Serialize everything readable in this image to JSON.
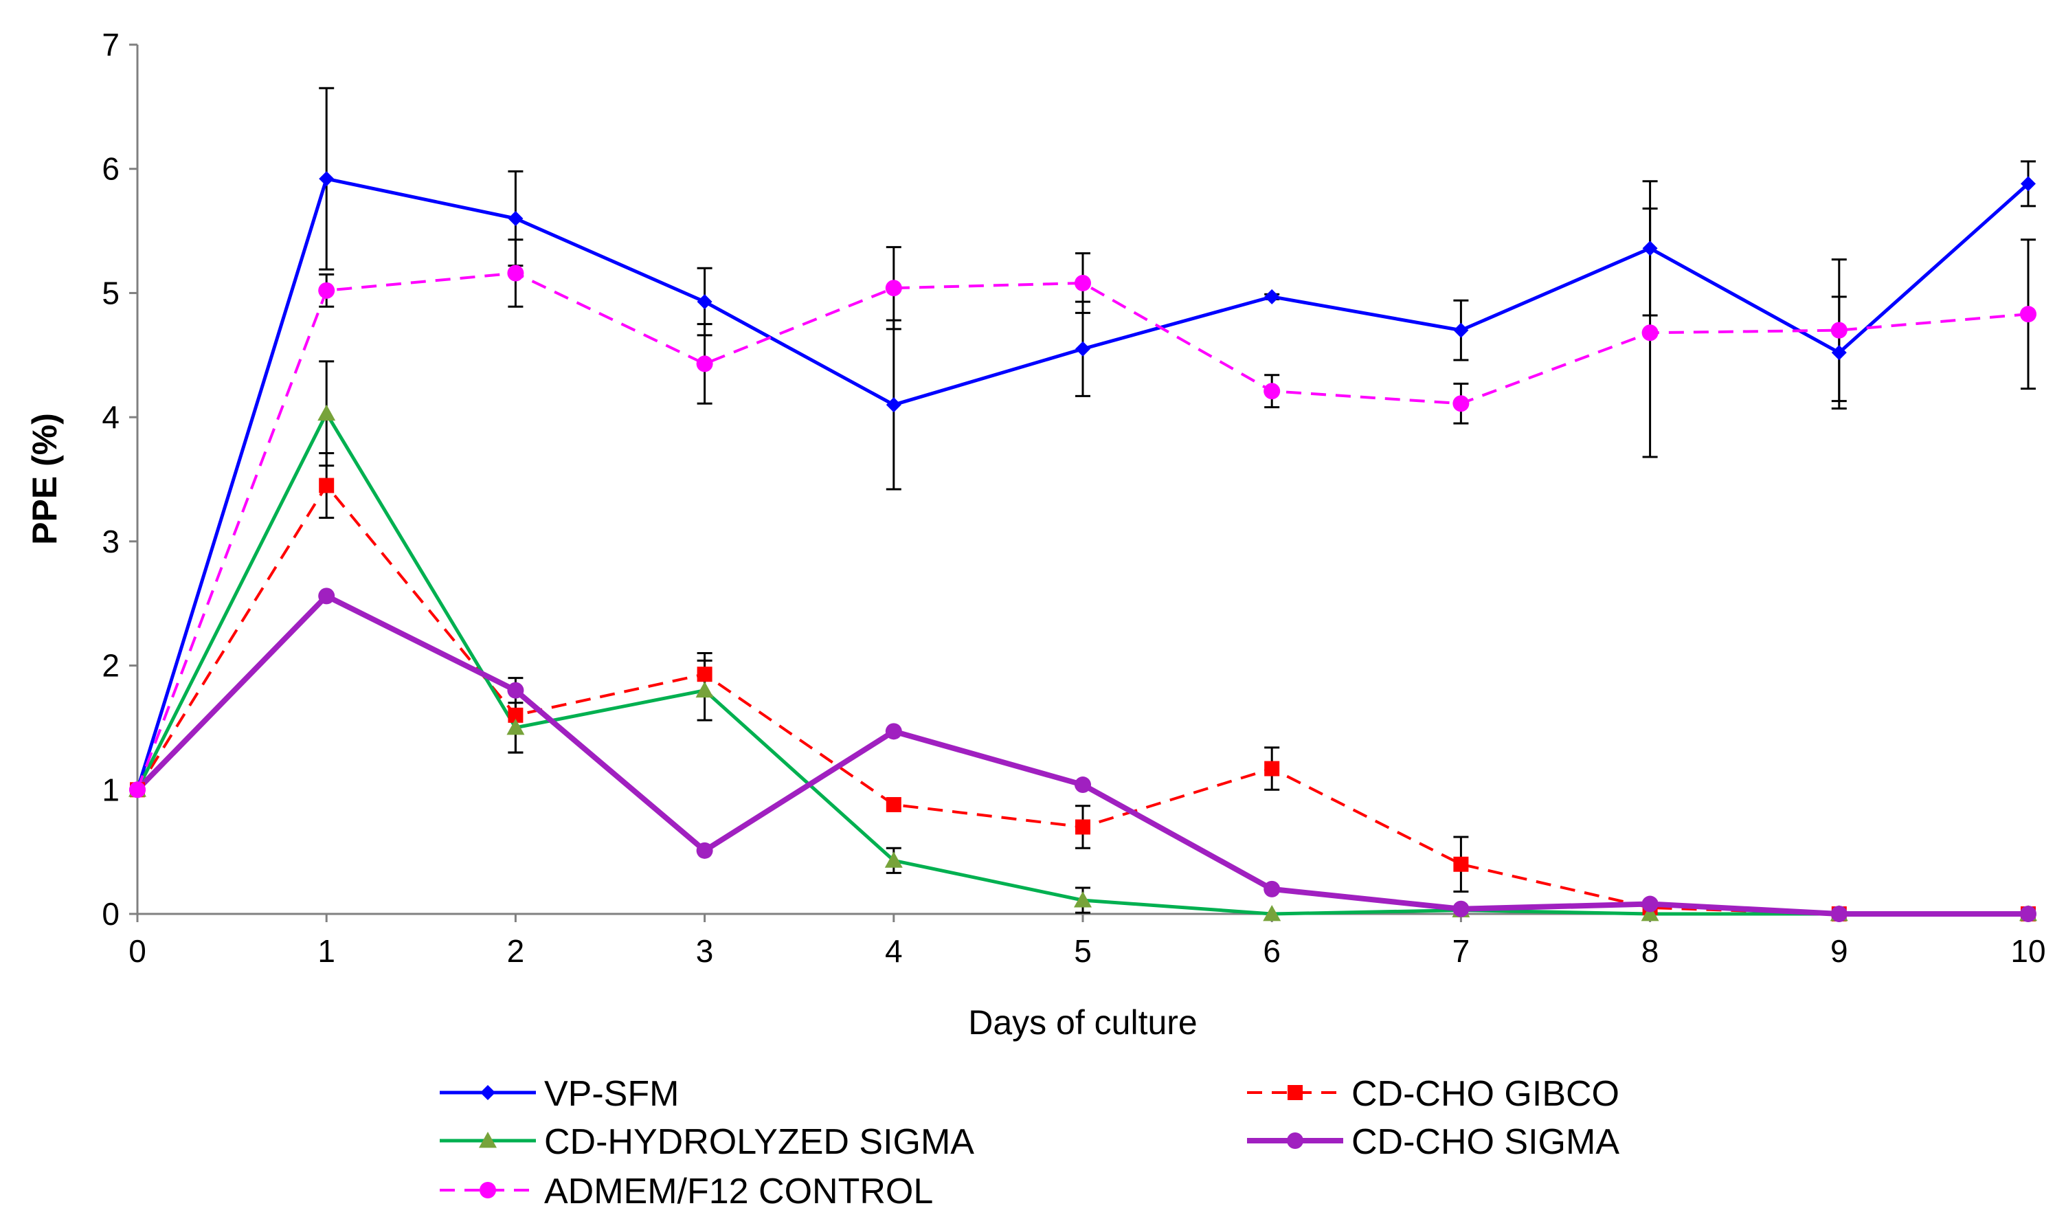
{
  "chart_data": {
    "type": "line",
    "title": "",
    "xlabel": "Days of culture",
    "ylabel": "PPE (%)",
    "xlim": [
      0,
      10
    ],
    "ylim": [
      0,
      7
    ],
    "x": [
      0,
      1,
      2,
      3,
      4,
      5,
      6,
      7,
      8,
      9,
      10
    ],
    "xticks": [
      "0",
      "1",
      "2",
      "3",
      "4",
      "5",
      "6",
      "7",
      "8",
      "9",
      "10"
    ],
    "yticks": [
      "0",
      "1",
      "2",
      "3",
      "4",
      "5",
      "6",
      "7"
    ],
    "legend_position": "bottom",
    "series": [
      {
        "name": "VP-SFM",
        "color": "#0000ff",
        "marker": "diamond",
        "dash": "solid",
        "width": 5,
        "values": [
          1.0,
          5.92,
          5.6,
          4.93,
          4.1,
          4.55,
          4.97,
          4.7,
          5.36,
          4.52,
          5.88
        ],
        "errors": [
          0,
          0.73,
          0.38,
          0.27,
          0.68,
          0.38,
          0.02,
          0.24,
          0.54,
          0.45,
          0.18
        ]
      },
      {
        "name": "CD-CHO GIBCO",
        "color": "#ff0000",
        "marker": "square",
        "dash": "dashed",
        "width": 4,
        "values": [
          1.0,
          3.45,
          1.6,
          1.93,
          0.88,
          0.7,
          1.17,
          0.4,
          0.05,
          0.0,
          0.0
        ],
        "errors": [
          0,
          0.26,
          0.3,
          0.17,
          0.0,
          0.17,
          0.17,
          0.22,
          0.0,
          0.0,
          0.0
        ]
      },
      {
        "name": "CD-HYDROLYZED SIGMA",
        "color": "#00b050",
        "marker": "triangle",
        "marker_color": "#77a33a",
        "dash": "solid",
        "width": 5,
        "values": [
          1.0,
          4.03,
          1.5,
          1.8,
          0.43,
          0.11,
          0.0,
          0.03,
          0.0,
          0.0,
          0.0
        ],
        "errors": [
          0,
          0.42,
          0.2,
          0.24,
          0.1,
          0.1,
          0.0,
          0.0,
          0.0,
          0.0,
          0.0
        ]
      },
      {
        "name": "CD-CHO SIGMA",
        "color": "#a020c0",
        "marker": "circle",
        "dash": "solid",
        "width": 8,
        "values": [
          1.0,
          2.56,
          1.8,
          0.51,
          1.47,
          1.04,
          0.2,
          0.04,
          0.08,
          0.0,
          0.0
        ],
        "errors": [
          0,
          0,
          0,
          0,
          0,
          0,
          0,
          0,
          0,
          0,
          0
        ]
      },
      {
        "name": "ADMEM/F12 CONTROL",
        "color": "#ff00ff",
        "marker": "circle",
        "dash": "dashed",
        "width": 4,
        "values": [
          1.0,
          5.02,
          5.16,
          4.43,
          5.04,
          5.08,
          4.21,
          4.11,
          4.68,
          4.7,
          4.83
        ],
        "errors": [
          0,
          0.13,
          0.27,
          0.32,
          0.33,
          0.24,
          0.13,
          0.16,
          1.0,
          0.57,
          0.6
        ]
      }
    ]
  }
}
